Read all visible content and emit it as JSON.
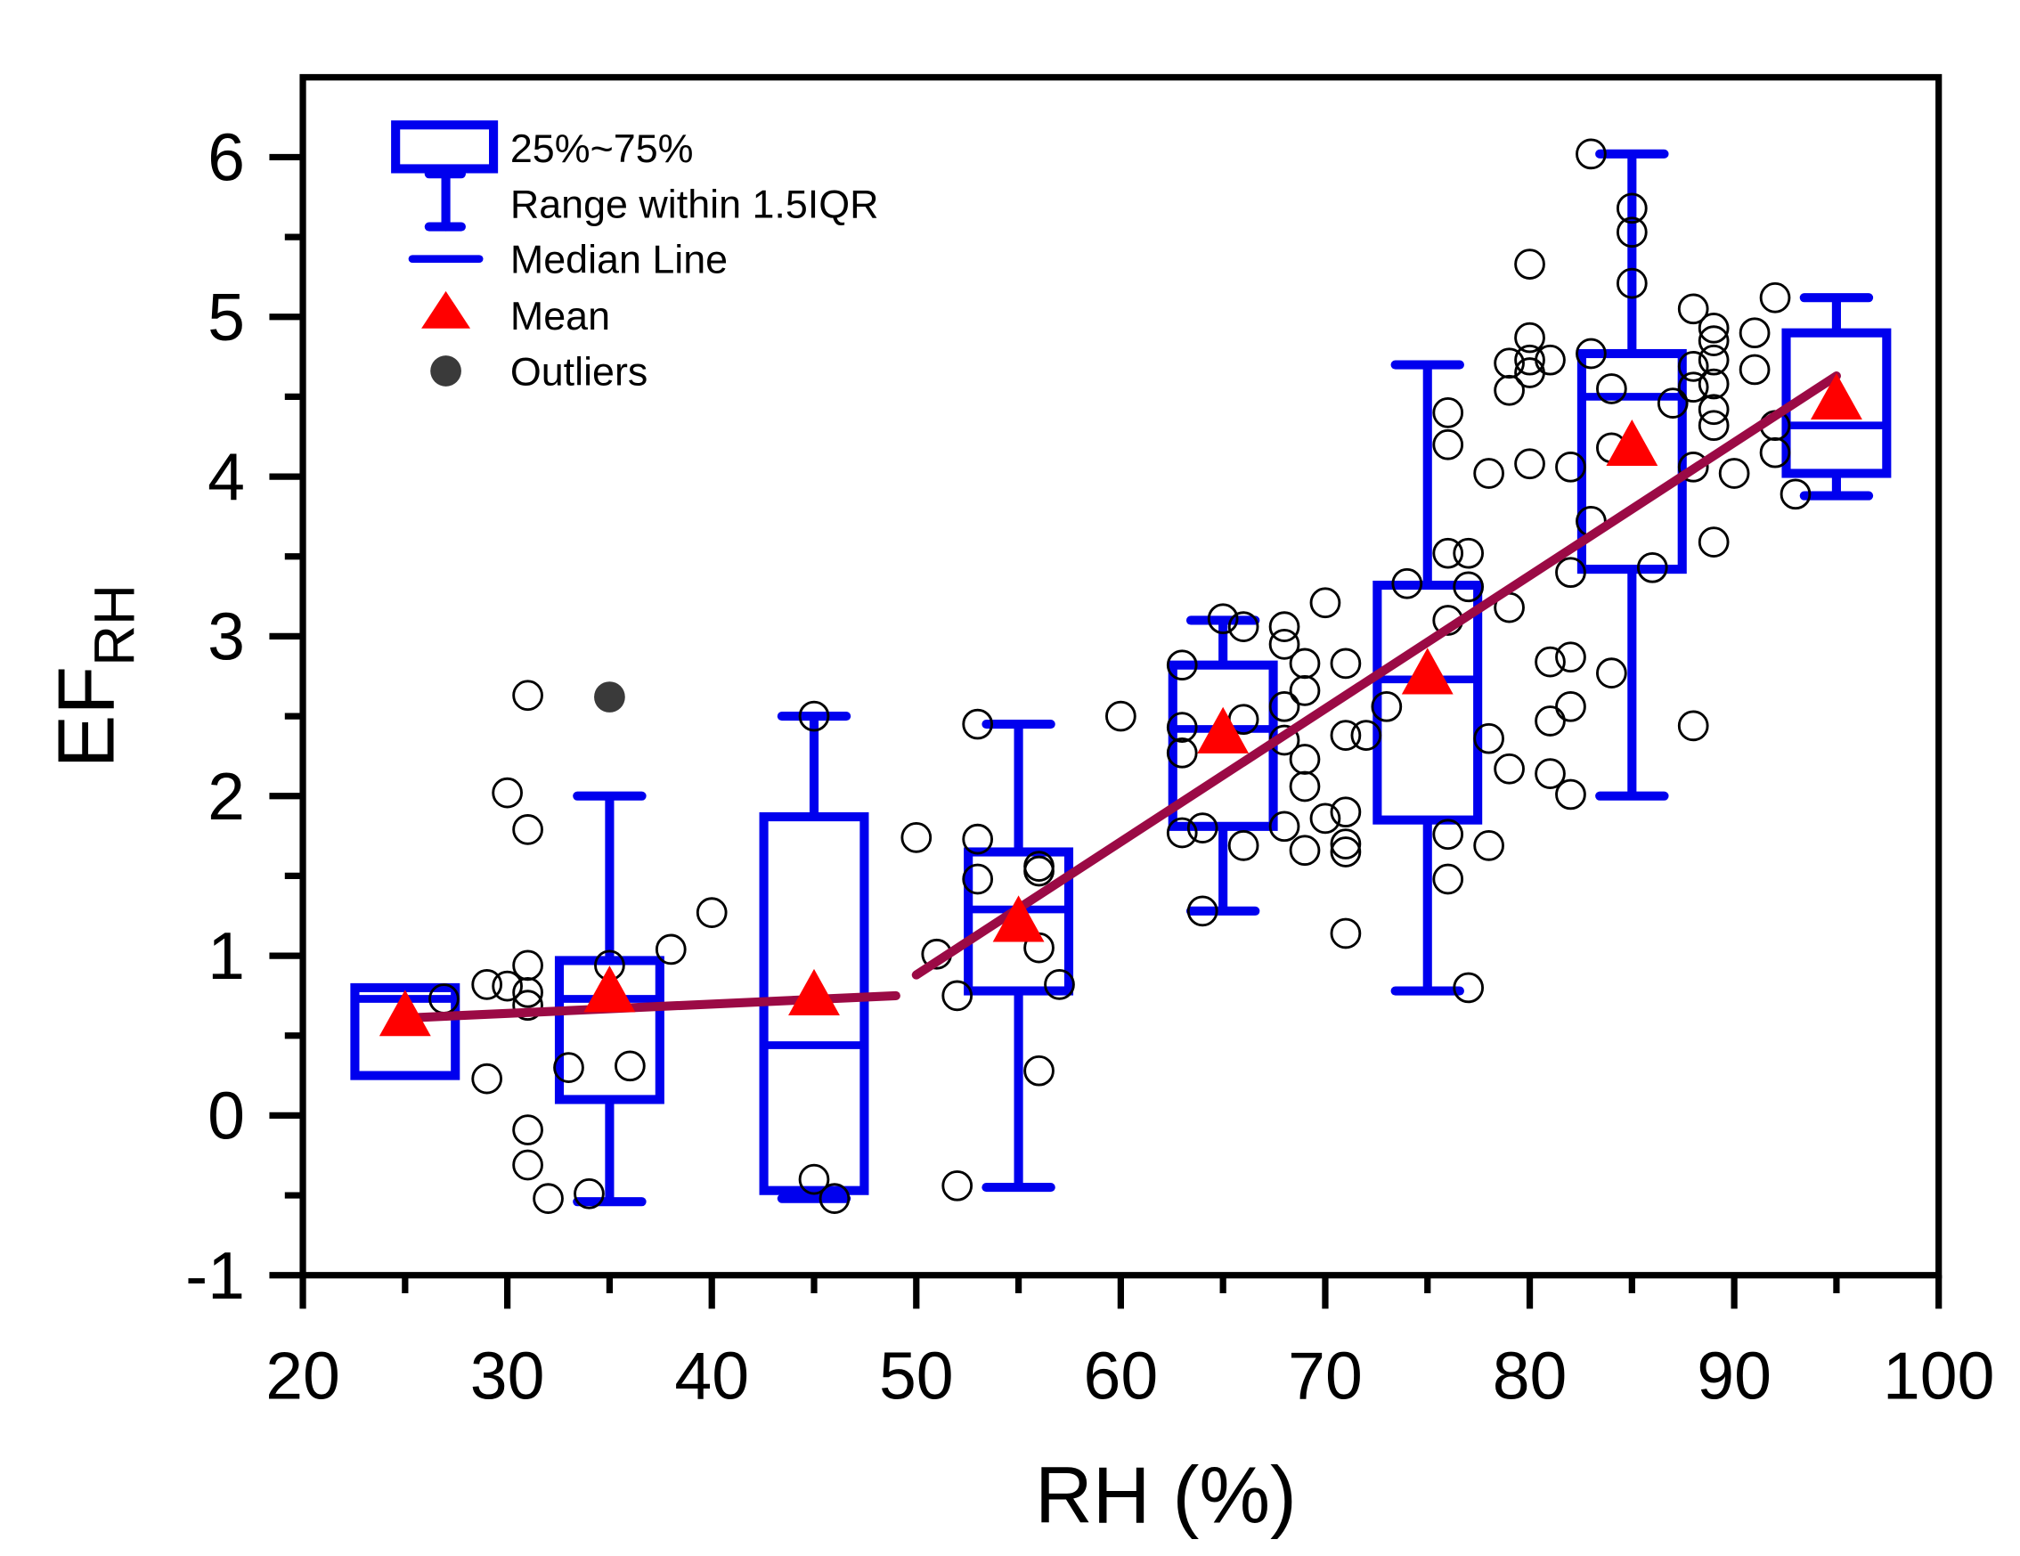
{
  "chart_data": {
    "type": "box",
    "xlabel": "RH (%)",
    "ylabel": "EF",
    "ylabel_sub": "RH",
    "xlim": [
      20,
      100
    ],
    "ylim": [
      -1,
      6.5
    ],
    "xticks": [
      20,
      30,
      40,
      50,
      60,
      70,
      80,
      90,
      100
    ],
    "yticks": [
      -1,
      0,
      1,
      2,
      3,
      4,
      5,
      6
    ],
    "grid": false,
    "legend_position": "top-left",
    "legend": {
      "box": "25%~75%",
      "whisker": "Range within 1.5IQR",
      "median": "Median Line",
      "mean": "Mean",
      "outliers": "Outliers"
    },
    "colors": {
      "box": "#0000ee",
      "mean": "#ff0000",
      "fit": "#9b0a45",
      "outlier": "#3a3a3a",
      "scatter": "#000000"
    },
    "boxes": [
      {
        "x": 25,
        "whisker_low": 0.25,
        "q1": 0.25,
        "median": 0.73,
        "q3": 0.8,
        "whisker_high": 0.8,
        "mean": 0.61
      },
      {
        "x": 35,
        "whisker_low": -0.54,
        "q1": 0.1,
        "median": 0.73,
        "q3": 0.97,
        "whisker_high": 2.0,
        "mean": 0.76,
        "outliers": [
          2.62
        ]
      },
      {
        "x": 45,
        "whisker_low": -0.52,
        "q1": -0.47,
        "median": 0.44,
        "q3": 1.87,
        "whisker_high": 2.5,
        "mean": 0.74
      },
      {
        "x": 55,
        "whisker_low": -0.45,
        "q1": 0.78,
        "median": 1.29,
        "q3": 1.65,
        "whisker_high": 2.45,
        "mean": 1.2
      },
      {
        "x": 65,
        "whisker_low": 1.28,
        "q1": 1.81,
        "median": 2.42,
        "q3": 2.82,
        "whisker_high": 3.1,
        "mean": 2.38
      },
      {
        "x": 75,
        "whisker_low": 0.78,
        "q1": 1.85,
        "median": 2.73,
        "q3": 3.32,
        "whisker_high": 4.7,
        "mean": 2.75
      },
      {
        "x": 85,
        "whisker_low": 2.0,
        "q1": 3.42,
        "median": 4.5,
        "q3": 4.77,
        "whisker_high": 6.02,
        "mean": 4.18
      },
      {
        "x": 95,
        "whisker_low": 3.88,
        "q1": 4.02,
        "median": 4.32,
        "q3": 4.9,
        "whisker_high": 5.12,
        "mean": 4.47
      }
    ],
    "fit_lines": [
      {
        "x": [
          25,
          49
        ],
        "y": [
          0.61,
          0.75
        ]
      },
      {
        "x": [
          50,
          95
        ],
        "y": [
          0.88,
          4.63
        ]
      }
    ],
    "scatter": [
      [
        26.9,
        0.73
      ],
      [
        29,
        0.23
      ],
      [
        29,
        0.82
      ],
      [
        30,
        0.81
      ],
      [
        30,
        2.02
      ],
      [
        31,
        2.63
      ],
      [
        31,
        1.79
      ],
      [
        31,
        0.94
      ],
      [
        31,
        0.77
      ],
      [
        31,
        0.69
      ],
      [
        31,
        -0.09
      ],
      [
        31,
        -0.31
      ],
      [
        32,
        -0.52
      ],
      [
        33,
        0.3
      ],
      [
        34,
        -0.49
      ],
      [
        35,
        0.94
      ],
      [
        36,
        0.31
      ],
      [
        38,
        1.04
      ],
      [
        40,
        1.27
      ],
      [
        45,
        2.5
      ],
      [
        45,
        -0.4
      ],
      [
        46,
        -0.52
      ],
      [
        50,
        1.74
      ],
      [
        51,
        1.01
      ],
      [
        52,
        0.75
      ],
      [
        52,
        -0.44
      ],
      [
        53,
        2.45
      ],
      [
        53,
        1.73
      ],
      [
        53,
        1.48
      ],
      [
        56,
        1.56
      ],
      [
        56,
        1.53
      ],
      [
        56,
        1.05
      ],
      [
        56,
        0.28
      ],
      [
        57,
        0.82
      ],
      [
        60,
        2.5
      ],
      [
        63,
        2.82
      ],
      [
        63,
        2.43
      ],
      [
        63,
        2.27
      ],
      [
        63,
        1.77
      ],
      [
        64,
        1.8
      ],
      [
        64,
        1.28
      ],
      [
        65,
        3.11
      ],
      [
        66,
        3.06
      ],
      [
        66,
        2.48
      ],
      [
        66,
        1.69
      ],
      [
        68,
        3.06
      ],
      [
        68,
        2.95
      ],
      [
        68,
        2.56
      ],
      [
        68,
        2.35
      ],
      [
        68,
        1.81
      ],
      [
        69,
        2.83
      ],
      [
        69,
        2.66
      ],
      [
        69,
        2.23
      ],
      [
        69,
        2.06
      ],
      [
        69,
        1.66
      ],
      [
        70,
        3.21
      ],
      [
        70,
        1.86
      ],
      [
        71,
        2.83
      ],
      [
        71,
        2.38
      ],
      [
        71,
        1.9
      ],
      [
        71,
        1.7
      ],
      [
        71,
        1.65
      ],
      [
        71,
        1.14
      ],
      [
        72,
        2.38
      ],
      [
        73,
        2.56
      ],
      [
        74,
        3.33
      ],
      [
        76,
        4.4
      ],
      [
        76,
        4.2
      ],
      [
        76,
        3.52
      ],
      [
        76,
        3.1
      ],
      [
        76,
        1.76
      ],
      [
        76,
        1.48
      ],
      [
        77,
        3.52
      ],
      [
        77,
        3.31
      ],
      [
        77,
        0.8
      ],
      [
        78,
        4.02
      ],
      [
        78,
        2.36
      ],
      [
        78,
        1.69
      ],
      [
        79,
        4.71
      ],
      [
        79,
        4.54
      ],
      [
        79,
        3.18
      ],
      [
        79,
        2.17
      ],
      [
        80,
        5.33
      ],
      [
        80,
        4.87
      ],
      [
        80,
        4.73
      ],
      [
        80,
        4.65
      ],
      [
        80,
        4.08
      ],
      [
        81,
        4.73
      ],
      [
        81,
        2.84
      ],
      [
        81,
        2.47
      ],
      [
        81,
        2.14
      ],
      [
        82,
        4.06
      ],
      [
        82,
        3.4
      ],
      [
        82,
        2.87
      ],
      [
        82,
        2.56
      ],
      [
        82,
        2.01
      ],
      [
        83,
        6.02
      ],
      [
        83,
        4.77
      ],
      [
        83,
        3.72
      ],
      [
        84,
        4.55
      ],
      [
        84,
        4.18
      ],
      [
        84,
        2.77
      ],
      [
        85,
        5.68
      ],
      [
        85,
        5.53
      ],
      [
        85,
        5.21
      ],
      [
        86,
        3.43
      ],
      [
        87,
        4.46
      ],
      [
        88,
        5.05
      ],
      [
        88,
        4.69
      ],
      [
        88,
        4.56
      ],
      [
        88,
        4.06
      ],
      [
        88,
        2.44
      ],
      [
        89,
        4.93
      ],
      [
        89,
        4.85
      ],
      [
        89,
        4.73
      ],
      [
        89,
        4.58
      ],
      [
        89,
        4.42
      ],
      [
        89,
        4.32
      ],
      [
        89,
        3.59
      ],
      [
        90,
        4.02
      ],
      [
        91,
        4.9
      ],
      [
        91,
        4.67
      ],
      [
        92,
        5.12
      ],
      [
        92,
        4.32
      ],
      [
        92,
        4.15
      ],
      [
        93,
        3.89
      ]
    ]
  }
}
